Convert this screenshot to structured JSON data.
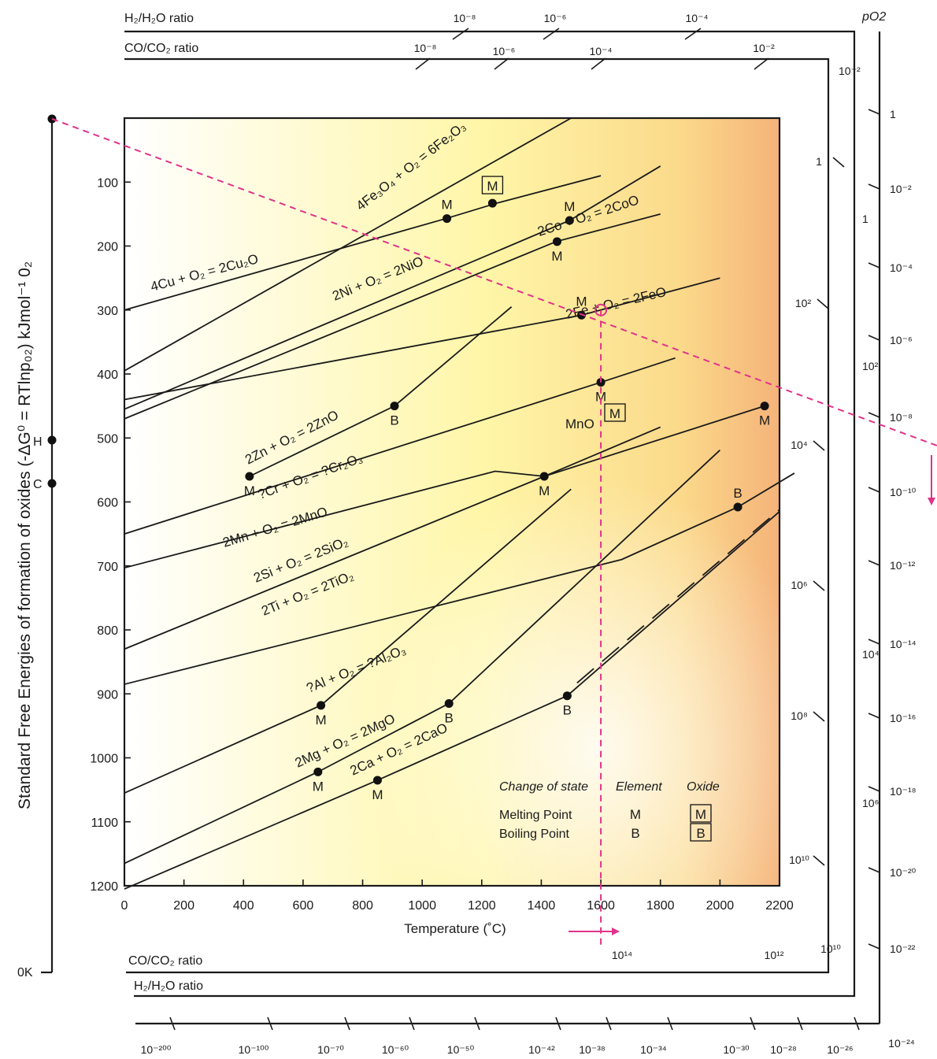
{
  "chart_data": {
    "type": "line",
    "title": "",
    "xlabel": "Temperature (˚C)",
    "ylabel": "Standard Free Energies of formation of oxides (-ΔG⁰ = RTlnp₀₂) kJmol⁻¹ 0₂",
    "xlim": [
      0,
      2200
    ],
    "ylim": [
      0,
      1200
    ],
    "x_ticks": [
      "0",
      "200",
      "400",
      "600",
      "800",
      "1000",
      "1200",
      "1400",
      "1600",
      "1800",
      "2000",
      "2200"
    ],
    "y_ticks": [
      "100",
      "200",
      "300",
      "400",
      "500",
      "600",
      "700",
      "800",
      "900",
      "1000",
      "1100",
      "1200"
    ],
    "series": [
      {
        "name": "4Fe₃O₄ + O₂ = 6Fe₂O₃",
        "x": [
          0,
          1500
        ],
        "y": [
          395,
          0
        ]
      },
      {
        "name": "4Cu + O₂ = 2Cu₂O",
        "x": [
          0,
          1080,
          1250,
          1600
        ],
        "y": [
          300,
          157,
          133,
          90
        ]
      },
      {
        "name": "2Co + O₂ = 2CoO",
        "x": [
          0,
          1495,
          1800
        ],
        "y": [
          455,
          160,
          75
        ]
      },
      {
        "name": "2Ni + O₂ = 2NiO",
        "x": [
          0,
          1450,
          1800
        ],
        "y": [
          470,
          193,
          150
        ]
      },
      {
        "name": "2Fe + O₂ = 2FeO",
        "x": [
          0,
          1535,
          2000
        ],
        "y": [
          440,
          308,
          250
        ]
      },
      {
        "name": "2Zn + O₂ = 2ZnO",
        "x": [
          420,
          907,
          1300
        ],
        "y": [
          560,
          450,
          295
        ]
      },
      {
        "name": "?Cr + O₂ = ?Cr₂O₃",
        "x": [
          0,
          1600,
          1850
        ],
        "y": [
          650,
          413,
          375
        ]
      },
      {
        "name": "2Mn + O₂ = 2MnO",
        "x": [
          0,
          1245,
          1410,
          1800
        ],
        "y": [
          703,
          552,
          560,
          483
        ]
      },
      {
        "name": "2Si + O₂ = 2SiO₂",
        "x": [
          0,
          1410,
          2150
        ],
        "y": [
          830,
          560,
          450
        ]
      },
      {
        "name": "2Ti + O₂ = 2TiO₂",
        "x": [
          0,
          1670,
          2060,
          2250
        ],
        "y": [
          885,
          690,
          608,
          555
        ]
      },
      {
        "name": "?Al + O₂ = ?Al₂O₃",
        "x": [
          0,
          660,
          1500
        ],
        "y": [
          1055,
          918,
          580
        ]
      },
      {
        "name": "2Mg + O₂ = 2MgO",
        "x": [
          0,
          650,
          1090,
          2000
        ],
        "y": [
          1165,
          1022,
          915,
          519
        ]
      },
      {
        "name": "2Ca + O₂ = 2CaO",
        "x": [
          0,
          850,
          1487,
          2200
        ],
        "y": [
          1205,
          1035,
          903,
          615
        ]
      }
    ],
    "markers": [
      {
        "label": "M",
        "x": 1083,
        "y": 157
      },
      {
        "label": "M",
        "x": 1236,
        "y": 133,
        "boxed": true
      },
      {
        "label": "M",
        "x": 1495,
        "y": 160
      },
      {
        "label": "M",
        "x": 1453,
        "y": 193
      },
      {
        "label": "M",
        "x": 1535,
        "y": 308
      },
      {
        "label": "B",
        "x": 907,
        "y": 450
      },
      {
        "label": "M",
        "x": 420,
        "y": 560
      },
      {
        "label": "M",
        "x": 1600,
        "y": 413
      },
      {
        "label": "M",
        "x": 1410,
        "y": 560
      },
      {
        "label": "M",
        "x": 2150,
        "y": 450
      },
      {
        "label": "B",
        "x": 2060,
        "y": 608
      },
      {
        "label": "M",
        "x": 660,
        "y": 918
      },
      {
        "label": "B",
        "x": 1090,
        "y": 915
      },
      {
        "label": "M",
        "x": 650,
        "y": 1022
      },
      {
        "label": "M",
        "x": 850,
        "y": 1035
      },
      {
        "label": "B",
        "x": 1487,
        "y": 903
      }
    ],
    "mno_label": "MnO",
    "mno_marker": "M",
    "reaction_labels": [
      "4Fe₃O₄ + O₂ = 6Fe₂O₃",
      "4Cu + O₂ = 2Cu₂O",
      "2Co + O₂ = 2CoO",
      "2Ni + O₂ = 2NiO",
      "2Fe + O₂ = 2FeO",
      "2Zn + O₂ = 2ZnO",
      "?Cr + O₂ = ?Cr₂O₃",
      "2Mn + O₂ = 2MnO",
      "2Si + O₂ = 2SiO₂",
      "2Ti + O₂ = 2TiO₂",
      "?Al + O₂ = ?Al₂O₃",
      "2Mg + O₂ = 2MgO",
      "2Ca + O₂ = 2CaO"
    ],
    "left_axis_labels": {
      "h": "H",
      "c": "C",
      "zero": "0K"
    },
    "legend": {
      "header": [
        "Change of state",
        "Element",
        "Oxide"
      ],
      "rows": [
        {
          "label": "Melting Point",
          "element": "M",
          "oxide": "M"
        },
        {
          "label": "Boiling Point",
          "element": "B",
          "oxide": "B"
        }
      ],
      "position": "bottom-right"
    },
    "ratio_scales": {
      "top_h2_label": "H₂/H₂O ratio",
      "top_h2_ticks": [
        "10⁻⁸",
        "10⁻⁶",
        "10⁻⁴"
      ],
      "top_co_label": "CO/CO₂ ratio",
      "top_co_ticks": [
        "10⁻⁸",
        "10⁻⁶",
        "10⁻⁴",
        "10⁻²"
      ],
      "po2_label": "pO2",
      "po2_ticks": [
        "1",
        "10⁻²",
        "10⁻⁴",
        "10⁻⁶",
        "10⁻⁸",
        "10⁻¹⁰",
        "10⁻¹²",
        "10⁻¹⁴",
        "10⁻¹⁶",
        "10⁻¹⁸",
        "10⁻²⁰",
        "10⁻²²",
        "10⁻²⁴"
      ],
      "co_right_ticks": [
        "10⁻²",
        "1",
        "10²",
        "10⁴",
        "10⁶",
        "10⁸",
        "10¹⁰"
      ],
      "h2_right_ticks": [
        "1",
        "10²",
        "10⁴",
        "10⁶",
        "10⁸",
        "10¹⁰"
      ],
      "bottom_co_label": "CO/CO₂ ratio",
      "bottom_co_ticks": [
        "10¹⁴",
        "10¹²",
        "10¹⁰"
      ],
      "bottom_h2_label": "H₂/H₂O ratio",
      "bottom_po2_ticks": [
        "10⁻²⁰⁰",
        "10⁻¹⁰⁰",
        "10⁻⁷⁰",
        "10⁻⁶⁰",
        "10⁻⁵⁰",
        "10⁻⁴²",
        "10⁻³⁸",
        "10⁻³⁴",
        "10⁻³⁰",
        "10⁻²⁸",
        "10⁻²⁶",
        "10⁻²⁴"
      ]
    },
    "guide_lines": {
      "construction_temp_c": 1600,
      "construction_dg": 300
    },
    "colors": {
      "line": "#1a1a1a",
      "guide": "#e0338a",
      "bg_left": "#ffffff",
      "bg_mid": "#fff6a8",
      "bg_right": "#f5b37a"
    },
    "grid": false
  }
}
